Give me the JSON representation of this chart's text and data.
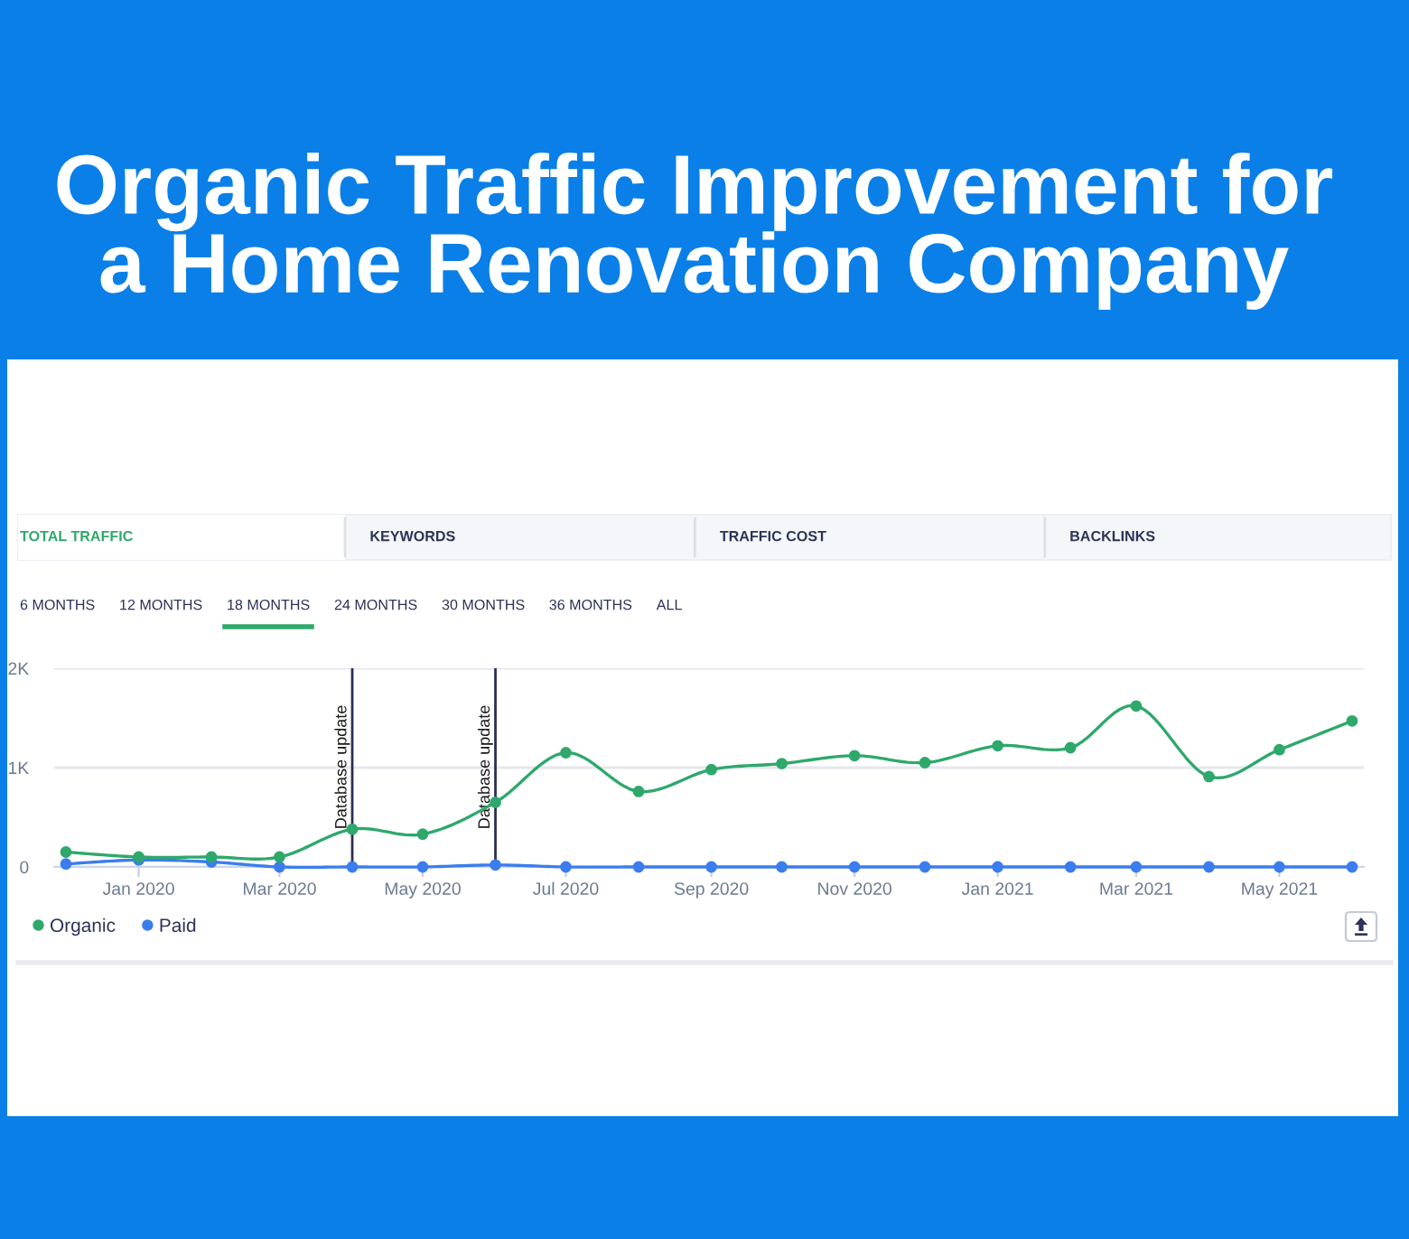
{
  "chart_data": {
    "type": "line",
    "title": "Organic Traffic Improvement for\na Home Renovation Company",
    "x": [
      "2019-12",
      "2020-01",
      "2020-02",
      "2020-03",
      "2020-04",
      "2020-05",
      "2020-06",
      "2020-07",
      "2020-08",
      "2020-09",
      "2020-10",
      "2020-11",
      "2020-12",
      "2021-01",
      "2021-02",
      "2021-03",
      "2021-04",
      "2021-05",
      "2021-06"
    ],
    "series": [
      {
        "name": "Organic",
        "color": "#2fa86b",
        "values": [
          150,
          100,
          100,
          100,
          380,
          330,
          650,
          1150,
          760,
          980,
          1040,
          1120,
          1050,
          1220,
          1200,
          1620,
          910,
          1180,
          1470
        ]
      },
      {
        "name": "Paid",
        "color": "#3b7ded",
        "values": [
          30,
          70,
          50,
          0,
          0,
          0,
          20,
          0,
          0,
          0,
          0,
          0,
          0,
          0,
          0,
          0,
          0,
          0,
          0
        ]
      }
    ],
    "xlim": [
      "2019-11-26",
      "2021-06-06"
    ],
    "xticks": [
      {
        "value": "2020-01",
        "label": "Jan 2020"
      },
      {
        "value": "2020-03",
        "label": "Mar 2020"
      },
      {
        "value": "2020-05",
        "label": "May 2020"
      },
      {
        "value": "2020-07",
        "label": "Jul 2020"
      },
      {
        "value": "2020-09",
        "label": "Sep 2020"
      },
      {
        "value": "2020-11",
        "label": "Nov 2020"
      },
      {
        "value": "2021-01",
        "label": "Jan 2021"
      },
      {
        "value": "2021-03",
        "label": "Mar 2021"
      },
      {
        "value": "2021-05",
        "label": "May 2021"
      }
    ],
    "ylim": [
      0,
      2000
    ],
    "yticks": [
      0,
      {
        "value": 1000,
        "label": "1K"
      },
      {
        "value": 2000,
        "label": "2K"
      }
    ],
    "ref_lines": [
      {
        "axis": "x",
        "value": "2020-04",
        "label": "Database update",
        "color": "#2b2d55"
      },
      {
        "axis": "x",
        "value": "2020-06",
        "label": "Database update",
        "color": "#2b2d55"
      }
    ],
    "annotations": [
      "TOTAL TRAFFIC",
      "KEYWORDS",
      "TRAFFIC COST",
      "BACKLINKS",
      "6 MONTHS",
      "12 MONTHS",
      "18 MONTHS",
      "24 MONTHS",
      "30 MONTHS",
      "36 MONTHS",
      "ALL"
    ],
    "grid": "y",
    "legend": "bottom left",
    "marker": "circle"
  }
}
